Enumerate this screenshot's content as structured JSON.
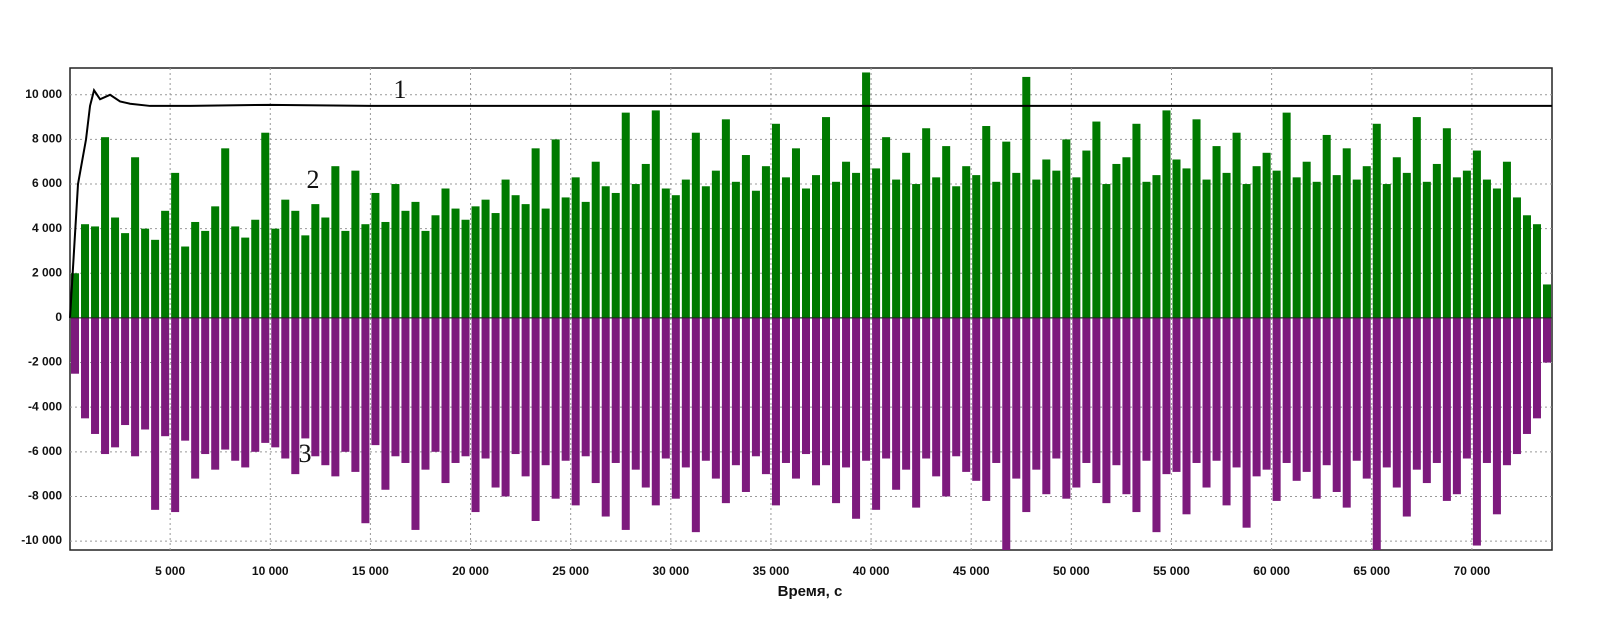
{
  "chart_data": {
    "type": "combo",
    "x_label": "Время, с",
    "annotations": [
      "1",
      "2",
      "3"
    ],
    "xlim": [
      0,
      74000
    ],
    "ylim": [
      -10400,
      11200
    ],
    "xticks": [
      {
        "value": 5000,
        "label": "5 000"
      },
      {
        "value": 10000,
        "label": "10 000"
      },
      {
        "value": 15000,
        "label": "15 000"
      },
      {
        "value": 20000,
        "label": "20 000"
      },
      {
        "value": 25000,
        "label": "25 000"
      },
      {
        "value": 30000,
        "label": "30 000"
      },
      {
        "value": 35000,
        "label": "35 000"
      },
      {
        "value": 40000,
        "label": "40 000"
      },
      {
        "value": 45000,
        "label": "45 000"
      },
      {
        "value": 50000,
        "label": "50 000"
      },
      {
        "value": 55000,
        "label": "55 000"
      },
      {
        "value": 60000,
        "label": "60 000"
      },
      {
        "value": 65000,
        "label": "65 000"
      },
      {
        "value": 70000,
        "label": "70 000"
      }
    ],
    "yticks": [
      {
        "value": -10000,
        "label": "-10 000"
      },
      {
        "value": -8000,
        "label": "-8 000"
      },
      {
        "value": -6000,
        "label": "-6 000"
      },
      {
        "value": -4000,
        "label": "-4 000"
      },
      {
        "value": -2000,
        "label": "-2 000"
      },
      0,
      {
        "value": 2000,
        "label": "2 000"
      },
      {
        "value": 4000,
        "label": "4 000"
      },
      {
        "value": 6000,
        "label": "6 000"
      },
      {
        "value": 8000,
        "label": "8 000"
      },
      {
        "value": 10000,
        "label": "10 000"
      }
    ],
    "grid": true,
    "x": [
      250,
      750,
      1250,
      1750,
      2250,
      2750,
      3250,
      3750,
      4250,
      4750,
      5250,
      5750,
      6250,
      6750,
      7250,
      7750,
      8250,
      8750,
      9250,
      9750,
      10250,
      10750,
      11250,
      11750,
      12250,
      12750,
      13250,
      13750,
      14250,
      14750,
      15250,
      15750,
      16250,
      16750,
      17250,
      17750,
      18250,
      18750,
      19250,
      19750,
      20250,
      20750,
      21250,
      21750,
      22250,
      22750,
      23250,
      23750,
      24250,
      24750,
      25250,
      25750,
      26250,
      26750,
      27250,
      27750,
      28250,
      28750,
      29250,
      29750,
      30250,
      30750,
      31250,
      31750,
      32250,
      32750,
      33250,
      33750,
      34250,
      34750,
      35250,
      35750,
      36250,
      36750,
      37250,
      37750,
      38250,
      38750,
      39250,
      39750,
      40250,
      40750,
      41250,
      41750,
      42250,
      42750,
      43250,
      43750,
      44250,
      44750,
      45250,
      45750,
      46250,
      46750,
      47250,
      47750,
      48250,
      48750,
      49250,
      49750,
      50250,
      50750,
      51250,
      51750,
      52250,
      52750,
      53250,
      53750,
      54250,
      54750,
      55250,
      55750,
      56250,
      56750,
      57250,
      57750,
      58250,
      58750,
      59250,
      59750,
      60250,
      60750,
      61250,
      61750,
      62250,
      62750,
      63250,
      63750,
      64250,
      64750,
      65250,
      65750,
      66250,
      66750,
      67250,
      67750,
      68250,
      68750,
      69250,
      69750,
      70250,
      70750,
      71250,
      71750,
      72250,
      72750,
      73250,
      73750
    ],
    "series": [
      {
        "type": "line",
        "color": "#000000",
        "x": [
          0,
          200,
          400,
          600,
          800,
          1000,
          1200,
          1500,
          2000,
          2500,
          3000,
          4000,
          6000,
          10000,
          15000,
          20000,
          74000
        ],
        "values": [
          0,
          3000,
          6000,
          7000,
          8000,
          9500,
          10200,
          9800,
          10000,
          9700,
          9600,
          9500,
          9500,
          9550,
          9500,
          9500,
          9500
        ]
      },
      {
        "type": "bar",
        "color": "#007a00",
        "values": [
          2000,
          4200,
          4100,
          8100,
          4500,
          3800,
          7200,
          4000,
          3500,
          4800,
          6500,
          3200,
          4300,
          3900,
          5000,
          7600,
          4100,
          3600,
          4400,
          8300,
          4000,
          5300,
          4800,
          3700,
          5100,
          4500,
          6800,
          3900,
          6600,
          4200,
          5600,
          4300,
          6000,
          4800,
          5200,
          3900,
          4600,
          5800,
          4900,
          4400,
          5000,
          5300,
          4700,
          6200,
          5500,
          5100,
          7600,
          4900,
          8000,
          5400,
          6300,
          5200,
          7000,
          5900,
          5600,
          9200,
          6000,
          6900,
          9300,
          5800,
          5500,
          6200,
          8300,
          5900,
          6600,
          8900,
          6100,
          7300,
          5700,
          6800,
          8700,
          6300,
          7600,
          5800,
          6400,
          9000,
          6100,
          7000,
          6500,
          11000,
          6700,
          8100,
          6200,
          7400,
          6000,
          8500,
          6300,
          7700,
          5900,
          6800,
          6400,
          8600,
          6100,
          7900,
          6500,
          10800,
          6200,
          7100,
          6600,
          8000,
          6300,
          7500,
          8800,
          6000,
          6900,
          7200,
          8700,
          6100,
          6400,
          9300,
          7100,
          6700,
          8900,
          6200,
          7700,
          6500,
          8300,
          6000,
          6800,
          7400,
          6600,
          9200,
          6300,
          7000,
          6100,
          8200,
          6400,
          7600,
          6200,
          6800,
          8700,
          6000,
          7200,
          6500,
          9000,
          6100,
          6900,
          8500,
          6300,
          6600,
          7500,
          6200,
          5800,
          7000,
          5400,
          4600,
          4200,
          1500
        ]
      },
      {
        "type": "bar",
        "color": "#7d1a7d",
        "values": [
          -2500,
          -4500,
          -5200,
          -6100,
          -5800,
          -4800,
          -6200,
          -5000,
          -8600,
          -5300,
          -8700,
          -5500,
          -7200,
          -6100,
          -6800,
          -5900,
          -6400,
          -6700,
          -6000,
          -5600,
          -5800,
          -6300,
          -7000,
          -5400,
          -6200,
          -6600,
          -7100,
          -6000,
          -6900,
          -9200,
          -5700,
          -7700,
          -6200,
          -6500,
          -9500,
          -6800,
          -6000,
          -7400,
          -6500,
          -6200,
          -8700,
          -6300,
          -7600,
          -8000,
          -6100,
          -7100,
          -9100,
          -6600,
          -8100,
          -6400,
          -8400,
          -6200,
          -7400,
          -8900,
          -6500,
          -9500,
          -6800,
          -7600,
          -8400,
          -6300,
          -8100,
          -6700,
          -9600,
          -6400,
          -7200,
          -8300,
          -6600,
          -7800,
          -6200,
          -7000,
          -8400,
          -6500,
          -7200,
          -6100,
          -7500,
          -6600,
          -8300,
          -6700,
          -9000,
          -6400,
          -8600,
          -6300,
          -7700,
          -6800,
          -8500,
          -6300,
          -7100,
          -8000,
          -6200,
          -6900,
          -7300,
          -8200,
          -6500,
          -10400,
          -7200,
          -8700,
          -6800,
          -7900,
          -6300,
          -8100,
          -7600,
          -6500,
          -7400,
          -8300,
          -6600,
          -7900,
          -8700,
          -6400,
          -9600,
          -7000,
          -6900,
          -8800,
          -6500,
          -7600,
          -6400,
          -8400,
          -6700,
          -9400,
          -7100,
          -6800,
          -8200,
          -6500,
          -7300,
          -6900,
          -8100,
          -6600,
          -7800,
          -8500,
          -6400,
          -7200,
          -10400,
          -6700,
          -7600,
          -8900,
          -6800,
          -7400,
          -6500,
          -8200,
          -7900,
          -6300,
          -10200,
          -6500,
          -8800,
          -6600,
          -6100,
          -5200,
          -4500,
          -2000
        ]
      }
    ]
  }
}
